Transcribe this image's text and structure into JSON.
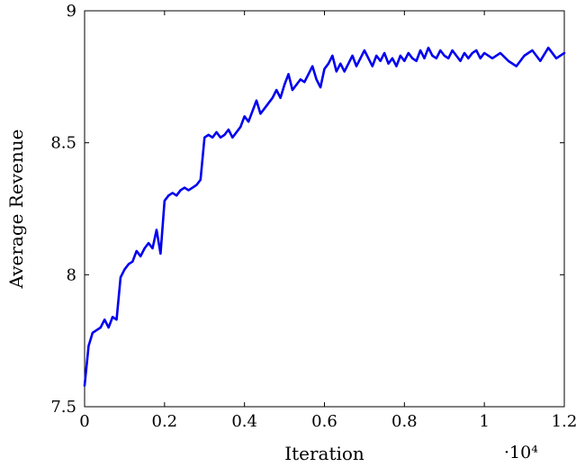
{
  "figure": {
    "background": "#ffffff",
    "axis_color": "#000000",
    "text_color": "#000000"
  },
  "chart_data": {
    "type": "line",
    "title": "",
    "xlabel": "Iteration",
    "ylabel": "Average Revenue",
    "x_scale_label": "·10⁴",
    "xlim": [
      0,
      12000
    ],
    "ylim": [
      7.5,
      9
    ],
    "x_ticks": [
      0,
      2000,
      4000,
      6000,
      8000,
      10000,
      12000
    ],
    "x_tick_labels": [
      "0",
      "0.2",
      "0.4",
      "0.6",
      "0.8",
      "1",
      "1.2"
    ],
    "y_ticks": [
      7.5,
      8,
      8.5,
      9
    ],
    "y_tick_labels": [
      "7.5",
      "8",
      "8.5",
      "9"
    ],
    "grid": false,
    "legend": null,
    "line_color": "#0000f0",
    "line_width": 2.6,
    "series": [
      {
        "name": "Average Revenue",
        "points": [
          [
            0,
            7.58
          ],
          [
            100,
            7.73
          ],
          [
            200,
            7.78
          ],
          [
            300,
            7.79
          ],
          [
            400,
            7.8
          ],
          [
            500,
            7.83
          ],
          [
            600,
            7.8
          ],
          [
            700,
            7.84
          ],
          [
            800,
            7.83
          ],
          [
            900,
            7.99
          ],
          [
            1000,
            8.02
          ],
          [
            1100,
            8.04
          ],
          [
            1200,
            8.05
          ],
          [
            1300,
            8.09
          ],
          [
            1400,
            8.07
          ],
          [
            1500,
            8.1
          ],
          [
            1600,
            8.12
          ],
          [
            1700,
            8.1
          ],
          [
            1800,
            8.17
          ],
          [
            1900,
            8.08
          ],
          [
            2000,
            8.28
          ],
          [
            2100,
            8.3
          ],
          [
            2200,
            8.31
          ],
          [
            2300,
            8.3
          ],
          [
            2400,
            8.32
          ],
          [
            2500,
            8.33
          ],
          [
            2600,
            8.32
          ],
          [
            2700,
            8.33
          ],
          [
            2800,
            8.34
          ],
          [
            2900,
            8.36
          ],
          [
            3000,
            8.52
          ],
          [
            3100,
            8.53
          ],
          [
            3200,
            8.52
          ],
          [
            3300,
            8.54
          ],
          [
            3400,
            8.52
          ],
          [
            3500,
            8.53
          ],
          [
            3600,
            8.55
          ],
          [
            3700,
            8.52
          ],
          [
            3800,
            8.54
          ],
          [
            3900,
            8.56
          ],
          [
            4000,
            8.6
          ],
          [
            4100,
            8.58
          ],
          [
            4200,
            8.62
          ],
          [
            4300,
            8.66
          ],
          [
            4400,
            8.61
          ],
          [
            4500,
            8.63
          ],
          [
            4600,
            8.65
          ],
          [
            4700,
            8.67
          ],
          [
            4800,
            8.7
          ],
          [
            4900,
            8.67
          ],
          [
            5000,
            8.72
          ],
          [
            5100,
            8.76
          ],
          [
            5200,
            8.7
          ],
          [
            5300,
            8.72
          ],
          [
            5400,
            8.74
          ],
          [
            5500,
            8.73
          ],
          [
            5600,
            8.76
          ],
          [
            5700,
            8.79
          ],
          [
            5800,
            8.74
          ],
          [
            5900,
            8.71
          ],
          [
            6000,
            8.78
          ],
          [
            6100,
            8.8
          ],
          [
            6200,
            8.83
          ],
          [
            6300,
            8.77
          ],
          [
            6400,
            8.8
          ],
          [
            6500,
            8.77
          ],
          [
            6600,
            8.8
          ],
          [
            6700,
            8.83
          ],
          [
            6800,
            8.79
          ],
          [
            6900,
            8.82
          ],
          [
            7000,
            8.85
          ],
          [
            7100,
            8.82
          ],
          [
            7200,
            8.79
          ],
          [
            7300,
            8.83
          ],
          [
            7400,
            8.81
          ],
          [
            7500,
            8.84
          ],
          [
            7600,
            8.8
          ],
          [
            7700,
            8.82
          ],
          [
            7800,
            8.79
          ],
          [
            7900,
            8.83
          ],
          [
            8000,
            8.81
          ],
          [
            8100,
            8.84
          ],
          [
            8200,
            8.82
          ],
          [
            8300,
            8.81
          ],
          [
            8400,
            8.85
          ],
          [
            8500,
            8.82
          ],
          [
            8600,
            8.86
          ],
          [
            8700,
            8.83
          ],
          [
            8800,
            8.82
          ],
          [
            8900,
            8.85
          ],
          [
            9000,
            8.83
          ],
          [
            9100,
            8.82
          ],
          [
            9200,
            8.85
          ],
          [
            9300,
            8.83
          ],
          [
            9400,
            8.81
          ],
          [
            9500,
            8.84
          ],
          [
            9600,
            8.82
          ],
          [
            9700,
            8.84
          ],
          [
            9800,
            8.85
          ],
          [
            9900,
            8.82
          ],
          [
            10000,
            8.84
          ],
          [
            10200,
            8.82
          ],
          [
            10400,
            8.84
          ],
          [
            10600,
            8.81
          ],
          [
            10800,
            8.79
          ],
          [
            11000,
            8.83
          ],
          [
            11200,
            8.85
          ],
          [
            11400,
            8.81
          ],
          [
            11600,
            8.86
          ],
          [
            11800,
            8.82
          ],
          [
            12000,
            8.84
          ]
        ]
      }
    ]
  }
}
